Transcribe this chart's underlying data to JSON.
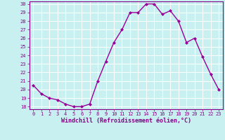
{
  "x": [
    0,
    1,
    2,
    3,
    4,
    5,
    6,
    7,
    8,
    9,
    10,
    11,
    12,
    13,
    14,
    15,
    16,
    17,
    18,
    19,
    20,
    21,
    22,
    23
  ],
  "y": [
    20.5,
    19.5,
    19.0,
    18.8,
    18.3,
    18.0,
    18.0,
    18.3,
    21.0,
    23.3,
    25.5,
    27.0,
    29.0,
    29.0,
    30.0,
    30.0,
    28.8,
    29.2,
    28.0,
    25.5,
    26.0,
    23.8,
    21.8,
    20.0
  ],
  "line_color": "#990099",
  "marker": "D",
  "markersize": 2.0,
  "linewidth": 1.0,
  "background_color": "#c8f0f0",
  "grid_color": "#ffffff",
  "xlabel": "Windchill (Refroidissement éolien,°C)",
  "ylabel": "",
  "ylim_min": 17.7,
  "ylim_max": 30.3,
  "xlim_min": -0.5,
  "xlim_max": 23.5,
  "yticks": [
    18,
    19,
    20,
    21,
    22,
    23,
    24,
    25,
    26,
    27,
    28,
    29,
    30
  ],
  "xticks": [
    0,
    1,
    2,
    3,
    4,
    5,
    6,
    7,
    8,
    9,
    10,
    11,
    12,
    13,
    14,
    15,
    16,
    17,
    18,
    19,
    20,
    21,
    22,
    23
  ],
  "tick_fontsize": 5.0,
  "xlabel_fontsize": 6.0,
  "tick_color": "#880088",
  "label_color": "#880088",
  "spine_color": "#880088"
}
